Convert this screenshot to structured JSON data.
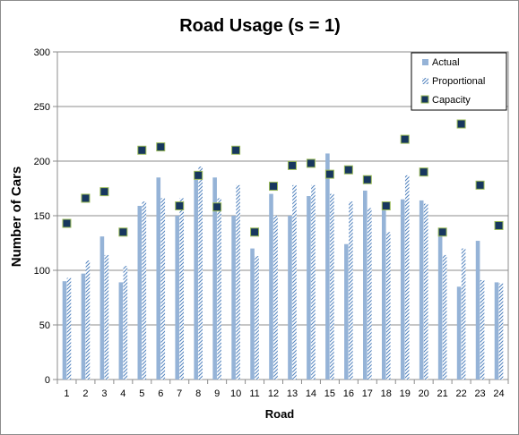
{
  "chart_data": {
    "type": "bar",
    "title": "Road Usage (s = 1)",
    "xlabel": "Road",
    "ylabel": "Number of Cars",
    "ylim": [
      0,
      300
    ],
    "yticks": [
      0,
      50,
      100,
      150,
      200,
      250,
      300
    ],
    "grid": "horizontal",
    "legend_position": "top-right",
    "categories": [
      "1",
      "2",
      "3",
      "4",
      "5",
      "6",
      "7",
      "8",
      "9",
      "10",
      "11",
      "12",
      "13",
      "14",
      "15",
      "16",
      "17",
      "18",
      "19",
      "20",
      "21",
      "22",
      "23",
      "24"
    ],
    "series": [
      {
        "name": "Actual",
        "kind": "bar",
        "style": "solid",
        "color": "#95b3d7",
        "values": [
          90,
          97,
          131,
          89,
          159,
          185,
          150,
          190,
          185,
          150,
          120,
          170,
          150,
          168,
          207,
          124,
          173,
          158,
          165,
          164,
          136,
          85,
          127,
          89
        ]
      },
      {
        "name": "Proportional",
        "kind": "bar",
        "style": "diagonal-hatch",
        "color": "#4f81bd",
        "values": [
          93,
          109,
          114,
          104,
          163,
          166,
          166,
          195,
          166,
          178,
          113,
          150,
          178,
          178,
          170,
          163,
          157,
          135,
          187,
          161,
          114,
          120,
          91,
          88
        ]
      },
      {
        "name": "Capacity",
        "kind": "marker",
        "style": "square",
        "color": "#17375e",
        "edge_color": "#9bbb59",
        "values": [
          143,
          166,
          172,
          135,
          210,
          213,
          159,
          187,
          158,
          210,
          135,
          177,
          196,
          198,
          188,
          192,
          183,
          159,
          220,
          190,
          135,
          234,
          178,
          141
        ]
      }
    ]
  }
}
